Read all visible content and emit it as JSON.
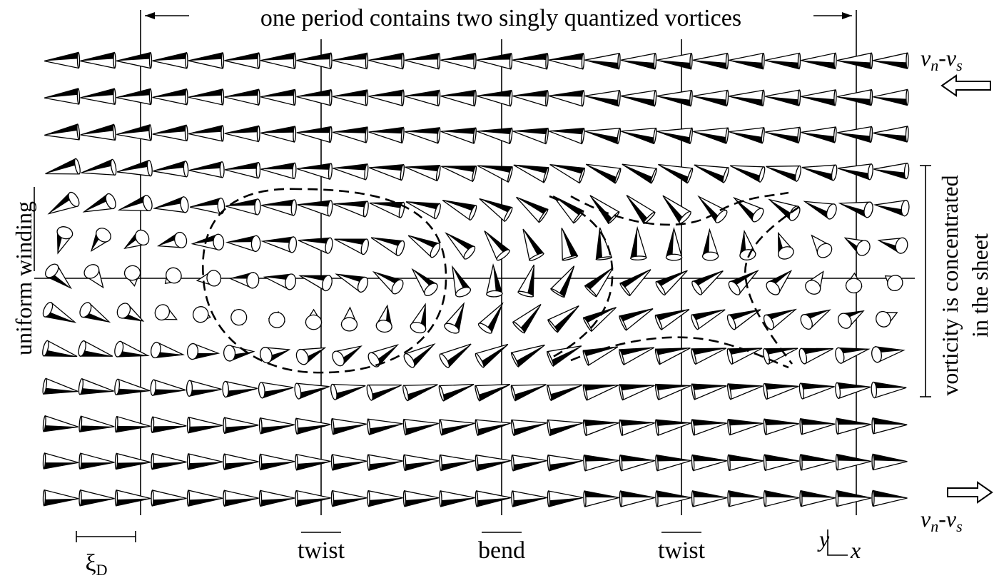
{
  "title": "one period contains two singly quantized vortices",
  "flow_label_top": {
    "base": "v",
    "sub1": "n",
    "mid": "-v",
    "sub2": "s"
  },
  "flow_label_bottom": {
    "base": "v",
    "sub1": "n",
    "mid": "-v",
    "sub2": "s"
  },
  "left_label": "uniform winding",
  "right_label": {
    "line1": "vorticity is concentrated",
    "line2": "in the sheet"
  },
  "scale_label": {
    "symbol": "ξ",
    "sub": "D"
  },
  "bottom_labels": [
    "twist",
    "bend",
    "twist"
  ],
  "axes_label": {
    "y": "y",
    "x": "x"
  }
}
